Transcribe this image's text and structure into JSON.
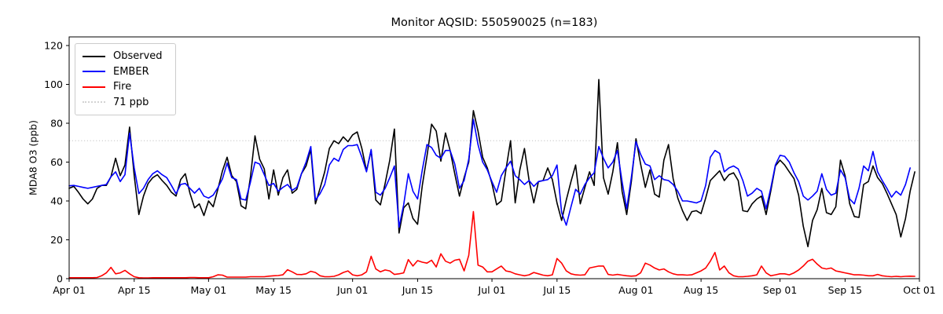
{
  "title": "Monitor AQSID: 550590025 (n=183)",
  "y_axis": {
    "label": "MDA8 O3 (ppb)",
    "ticks": [
      0,
      20,
      40,
      60,
      80,
      100,
      120
    ]
  },
  "x_axis": {
    "tick_labels": [
      "Apr 01",
      "Apr 15",
      "May 01",
      "May 15",
      "Jun 01",
      "Jun 15",
      "Jul 01",
      "Jul 15",
      "Aug 01",
      "Aug 15",
      "Sep 01",
      "Sep 15",
      "Oct 01"
    ],
    "tick_days": [
      0,
      14,
      30,
      44,
      61,
      75,
      91,
      105,
      122,
      136,
      153,
      167,
      183
    ]
  },
  "legend": {
    "items": [
      {
        "label": "Observed",
        "color": "#000000",
        "style": "solid"
      },
      {
        "label": "EMBER",
        "color": "#0000ff",
        "style": "solid"
      },
      {
        "label": "Fire",
        "color": "#ff0000",
        "style": "solid"
      },
      {
        "label": "71 ppb",
        "color": "#d3d3d3",
        "style": "dotted"
      }
    ]
  },
  "chart_data": {
    "type": "line",
    "title": "Monitor AQSID: 550590025 (n=183)",
    "xlabel": "",
    "ylabel": "MDA8 O3 (ppb)",
    "x_frequency": "daily",
    "x_start": "Apr 01",
    "x_end": "Sep 30",
    "n_points": 183,
    "ylim": [
      0,
      124
    ],
    "grid": false,
    "legend_position": "upper left",
    "threshold": {
      "label": "71 ppb",
      "value": 71,
      "color": "#d3d3d3"
    },
    "series": [
      {
        "name": "Observed",
        "color": "#000000",
        "values": [
          46.5,
          47.5,
          44.5,
          41,
          38.5,
          41,
          46.5,
          48,
          48,
          52.5,
          62,
          53,
          58.5,
          78,
          53,
          33,
          42.5,
          49,
          52,
          53.5,
          50.5,
          48,
          44.5,
          42.5,
          51,
          54,
          44,
          36.5,
          38.5,
          32.5,
          40,
          37,
          46,
          55.5,
          62.5,
          53,
          50,
          37.5,
          36,
          52,
          73.5,
          61.5,
          56.5,
          41,
          56,
          43,
          52,
          56,
          44,
          46,
          54,
          58,
          66.5,
          38.5,
          46.5,
          55,
          67,
          71,
          69.5,
          73,
          70.5,
          74,
          75.5,
          67,
          55.5,
          66,
          40.5,
          38,
          49,
          61,
          77,
          23.5,
          36.5,
          39,
          31,
          28,
          48,
          63,
          79.5,
          76,
          60.5,
          75,
          66,
          54,
          42.5,
          52,
          60,
          86.5,
          76,
          62.5,
          57,
          49,
          38,
          40,
          56,
          71,
          39,
          56,
          67,
          50.5,
          39,
          50,
          50.5,
          57,
          51,
          39,
          30,
          40.5,
          50,
          58.5,
          38.5,
          47,
          55,
          48,
          102.5,
          52,
          43.5,
          55,
          70,
          45,
          33,
          50,
          72,
          59,
          47,
          56,
          43.5,
          42,
          61,
          69,
          51.5,
          41.5,
          35,
          30,
          34.5,
          35,
          33.5,
          41.5,
          50.5,
          53,
          55.5,
          50.5,
          53.5,
          54.5,
          50.5,
          35,
          34.5,
          38.5,
          41,
          42.5,
          33,
          45,
          58,
          61,
          58.5,
          55,
          51.5,
          43,
          27,
          16.5,
          30,
          35.5,
          46.5,
          34,
          33,
          37,
          61,
          53,
          38.5,
          32,
          31.5,
          48.5,
          50,
          58,
          52,
          49,
          44,
          38.5,
          33,
          21.5,
          31,
          45,
          55
        ]
      },
      {
        "name": "EMBER",
        "color": "#0000ff",
        "values": [
          47.8,
          48,
          47.5,
          47,
          46.5,
          47,
          47.5,
          48,
          48.5,
          52.5,
          55,
          50,
          53.5,
          75,
          57,
          43.8,
          46.5,
          51,
          54,
          55.5,
          53.5,
          52,
          48,
          43.7,
          48.5,
          49,
          46.5,
          44,
          46.5,
          42.5,
          41.5,
          43,
          46.8,
          51.4,
          59.5,
          52,
          51,
          41,
          40.5,
          49.5,
          60,
          59,
          53.5,
          48,
          49,
          45,
          47,
          48.5,
          45.5,
          47,
          54,
          60,
          68,
          40.5,
          43.8,
          48.5,
          58.5,
          62,
          60.5,
          66.5,
          68.5,
          68.5,
          69,
          62.5,
          55,
          66.5,
          44.5,
          43,
          46.5,
          52,
          58,
          26.5,
          38,
          54,
          45,
          41,
          56,
          69,
          67.5,
          63.5,
          62,
          66,
          66,
          59,
          46.5,
          50.5,
          61.5,
          82,
          69,
          60,
          56,
          50,
          44.5,
          53,
          57,
          60.5,
          53,
          51,
          48.5,
          50.5,
          47.5,
          50,
          50.5,
          51,
          53,
          58.5,
          34,
          27.5,
          37,
          46,
          43.5,
          48.5,
          52,
          54.5,
          68,
          62,
          57,
          60,
          66,
          50,
          36,
          52,
          70.5,
          64,
          59,
          58,
          51,
          53,
          51,
          50.5,
          48.5,
          45,
          40,
          40,
          39.5,
          39,
          40,
          48,
          62.5,
          66,
          64.5,
          55,
          57,
          58,
          56.5,
          50.5,
          42.5,
          44,
          46.5,
          45,
          36,
          46.5,
          58.5,
          63.5,
          63,
          60,
          54.5,
          50,
          42.5,
          40.5,
          42.5,
          45,
          54,
          46,
          43,
          44,
          56,
          52,
          41,
          38.5,
          46.5,
          58,
          55.5,
          65.5,
          55,
          50.5,
          46.5,
          42,
          45,
          43,
          48.5,
          57,
          null
        ]
      },
      {
        "name": "Fire",
        "color": "#ff0000",
        "values": [
          0.5,
          0.5,
          0.5,
          0.5,
          0.5,
          0.5,
          0.6,
          1.5,
          3,
          5.8,
          2.5,
          3,
          4.3,
          2.5,
          1,
          0.5,
          0.4,
          0.4,
          0.5,
          0.5,
          0.5,
          0.5,
          0.5,
          0.5,
          0.5,
          0.5,
          0.6,
          0.6,
          0.5,
          0.5,
          0.5,
          1,
          2,
          1.8,
          0.8,
          0.8,
          0.8,
          0.8,
          0.8,
          1,
          1,
          1,
          1,
          1.3,
          1.5,
          1.6,
          2,
          4.6,
          3.5,
          2.2,
          2.1,
          2.5,
          3.8,
          3.2,
          1.5,
          1,
          1,
          1.2,
          2,
          3.2,
          4,
          2,
          1.5,
          2,
          3.5,
          11.5,
          5,
          3.5,
          4.5,
          4,
          2.2,
          2.5,
          3,
          9.8,
          6.5,
          9.3,
          8.5,
          8,
          9.5,
          6,
          12.8,
          9,
          8,
          9.5,
          10,
          4,
          12,
          34.5,
          7,
          6,
          3.5,
          3.5,
          5,
          6.5,
          4,
          3.5,
          2.5,
          2,
          1.5,
          2,
          3.2,
          2.5,
          1.8,
          1.5,
          2,
          10.4,
          8,
          4,
          2.5,
          2,
          1.8,
          2,
          5.5,
          6,
          6.5,
          6.5,
          2.2,
          1.8,
          2.2,
          1.8,
          1.5,
          1.3,
          1.5,
          3,
          8,
          7,
          5.5,
          4.5,
          5,
          3.5,
          2.5,
          2,
          2,
          1.8,
          2,
          3,
          4,
          5.5,
          9,
          13.5,
          4.5,
          6.5,
          3,
          1.5,
          1,
          1,
          1.2,
          1.5,
          2,
          6.5,
          3,
          1.5,
          2,
          2.5,
          2.5,
          2,
          3,
          4.5,
          6.5,
          9,
          10,
          7.5,
          5.5,
          5,
          5.5,
          4,
          3.5,
          3,
          2.5,
          2,
          2,
          1.8,
          1.5,
          1.5,
          2.2,
          1.5,
          1.2,
          1,
          1.2,
          1,
          1.2,
          1.3,
          1.2
        ]
      }
    ]
  }
}
